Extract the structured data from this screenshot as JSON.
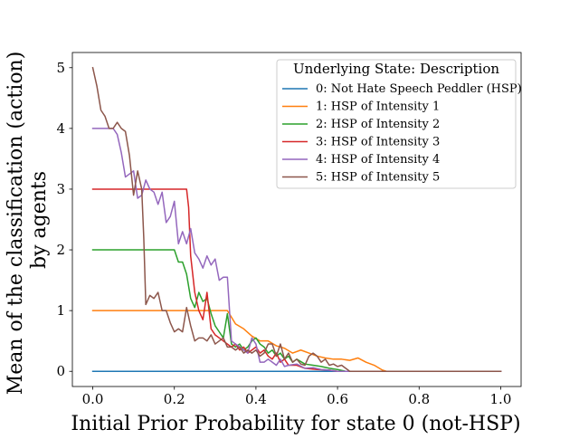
{
  "chart_data": {
    "type": "line",
    "xlabel": "Initial Prior Probability for state 0 (not-HSP)",
    "ylabel_lines": [
      "Mean of the classification (action)",
      "by agents"
    ],
    "xlim": [
      -0.05,
      1.05
    ],
    "ylim": [
      -0.25,
      5.25
    ],
    "xticks": [
      "0.0",
      "0.2",
      "0.4",
      "0.6",
      "0.8",
      "1.0"
    ],
    "yticks": [
      "0",
      "1",
      "2",
      "3",
      "4",
      "5"
    ],
    "grid": false,
    "legend": {
      "title": "Underlying State:  Description",
      "placement": "top-right",
      "entries": [
        "0:  Not Hate Speech Peddler (HSP)",
        "1:  HSP of Intensity 1",
        "2:  HSP of Intensity 2",
        "3:  HSP of Intensity 3",
        "4:  HSP of Intensity 4",
        "5:  HSP of Intensity 5"
      ]
    },
    "series": [
      {
        "name": "0:  Not Hate Speech Peddler (HSP)",
        "color": "#1f77b4",
        "points": [
          [
            0.0,
            0.0
          ],
          [
            1.0,
            0.0
          ]
        ]
      },
      {
        "name": "1:  HSP of Intensity 1",
        "color": "#ff7f0e",
        "points": [
          [
            0.0,
            1.0
          ],
          [
            0.33,
            1.0
          ],
          [
            0.35,
            0.78
          ],
          [
            0.37,
            0.7
          ],
          [
            0.39,
            0.58
          ],
          [
            0.41,
            0.5
          ],
          [
            0.43,
            0.5
          ],
          [
            0.45,
            0.42
          ],
          [
            0.47,
            0.38
          ],
          [
            0.49,
            0.3
          ],
          [
            0.51,
            0.35
          ],
          [
            0.53,
            0.3
          ],
          [
            0.55,
            0.25
          ],
          [
            0.57,
            0.22
          ],
          [
            0.59,
            0.2
          ],
          [
            0.61,
            0.2
          ],
          [
            0.63,
            0.18
          ],
          [
            0.65,
            0.22
          ],
          [
            0.67,
            0.15
          ],
          [
            0.69,
            0.1
          ],
          [
            0.71,
            0.02
          ],
          [
            0.72,
            0.0
          ],
          [
            1.0,
            0.0
          ]
        ]
      },
      {
        "name": "2:  HSP of Intensity 2",
        "color": "#2ca02c",
        "points": [
          [
            0.0,
            2.0
          ],
          [
            0.2,
            2.0
          ],
          [
            0.21,
            1.8
          ],
          [
            0.22,
            1.8
          ],
          [
            0.23,
            1.6
          ],
          [
            0.24,
            1.2
          ],
          [
            0.25,
            1.05
          ],
          [
            0.26,
            1.3
          ],
          [
            0.27,
            1.15
          ],
          [
            0.28,
            1.2
          ],
          [
            0.29,
            0.95
          ],
          [
            0.3,
            0.75
          ],
          [
            0.31,
            0.65
          ],
          [
            0.32,
            0.55
          ],
          [
            0.33,
            0.95
          ],
          [
            0.34,
            0.45
          ],
          [
            0.35,
            0.4
          ],
          [
            0.36,
            0.45
          ],
          [
            0.37,
            0.35
          ],
          [
            0.38,
            0.4
          ],
          [
            0.39,
            0.5
          ],
          [
            0.4,
            0.55
          ],
          [
            0.41,
            0.45
          ],
          [
            0.42,
            0.4
          ],
          [
            0.43,
            0.3
          ],
          [
            0.44,
            0.35
          ],
          [
            0.45,
            0.25
          ],
          [
            0.46,
            0.3
          ],
          [
            0.47,
            0.2
          ],
          [
            0.48,
            0.25
          ],
          [
            0.49,
            0.15
          ],
          [
            0.5,
            0.2
          ],
          [
            0.52,
            0.12
          ],
          [
            0.54,
            0.1
          ],
          [
            0.56,
            0.08
          ],
          [
            0.58,
            0.05
          ],
          [
            0.6,
            0.03
          ],
          [
            0.62,
            0.0
          ],
          [
            1.0,
            0.0
          ]
        ]
      },
      {
        "name": "3:  HSP of Intensity 3",
        "color": "#d62728",
        "points": [
          [
            0.0,
            3.0
          ],
          [
            0.23,
            3.0
          ],
          [
            0.235,
            2.7
          ],
          [
            0.24,
            1.9
          ],
          [
            0.25,
            1.3
          ],
          [
            0.26,
            1.0
          ],
          [
            0.27,
            0.85
          ],
          [
            0.28,
            1.3
          ],
          [
            0.29,
            0.7
          ],
          [
            0.3,
            0.6
          ],
          [
            0.31,
            0.55
          ],
          [
            0.32,
            0.5
          ],
          [
            0.33,
            0.45
          ],
          [
            0.34,
            0.4
          ],
          [
            0.35,
            0.45
          ],
          [
            0.36,
            0.35
          ],
          [
            0.37,
            0.4
          ],
          [
            0.38,
            0.3
          ],
          [
            0.39,
            0.35
          ],
          [
            0.4,
            0.4
          ],
          [
            0.41,
            0.3
          ],
          [
            0.42,
            0.35
          ],
          [
            0.43,
            0.25
          ],
          [
            0.44,
            0.2
          ],
          [
            0.45,
            0.3
          ],
          [
            0.46,
            0.15
          ],
          [
            0.47,
            0.2
          ],
          [
            0.48,
            0.1
          ],
          [
            0.5,
            0.1
          ],
          [
            0.52,
            0.05
          ],
          [
            0.55,
            0.03
          ],
          [
            0.58,
            0.02
          ],
          [
            0.6,
            0.0
          ],
          [
            1.0,
            0.0
          ]
        ]
      },
      {
        "name": "4:  HSP of Intensity 4",
        "color": "#9467bd",
        "points": [
          [
            0.0,
            4.0
          ],
          [
            0.05,
            4.0
          ],
          [
            0.06,
            3.9
          ],
          [
            0.07,
            3.6
          ],
          [
            0.08,
            3.2
          ],
          [
            0.09,
            3.25
          ],
          [
            0.1,
            3.3
          ],
          [
            0.11,
            2.85
          ],
          [
            0.12,
            2.9
          ],
          [
            0.13,
            3.15
          ],
          [
            0.14,
            3.0
          ],
          [
            0.15,
            2.95
          ],
          [
            0.16,
            2.75
          ],
          [
            0.17,
            2.95
          ],
          [
            0.18,
            2.45
          ],
          [
            0.19,
            2.55
          ],
          [
            0.2,
            2.8
          ],
          [
            0.21,
            2.1
          ],
          [
            0.22,
            2.3
          ],
          [
            0.23,
            2.1
          ],
          [
            0.24,
            2.35
          ],
          [
            0.25,
            1.95
          ],
          [
            0.26,
            1.85
          ],
          [
            0.27,
            1.7
          ],
          [
            0.28,
            1.9
          ],
          [
            0.29,
            1.75
          ],
          [
            0.3,
            1.85
          ],
          [
            0.31,
            1.5
          ],
          [
            0.32,
            1.55
          ],
          [
            0.33,
            1.55
          ],
          [
            0.34,
            0.5
          ],
          [
            0.35,
            0.45
          ],
          [
            0.36,
            0.4
          ],
          [
            0.37,
            0.35
          ],
          [
            0.38,
            0.3
          ],
          [
            0.39,
            0.55
          ],
          [
            0.4,
            0.45
          ],
          [
            0.41,
            0.15
          ],
          [
            0.42,
            0.15
          ],
          [
            0.43,
            0.2
          ],
          [
            0.44,
            0.15
          ],
          [
            0.45,
            0.1
          ],
          [
            0.46,
            0.2
          ],
          [
            0.47,
            0.08
          ],
          [
            0.48,
            0.1
          ],
          [
            0.5,
            0.12
          ],
          [
            0.52,
            0.05
          ],
          [
            0.54,
            0.06
          ],
          [
            0.56,
            0.03
          ],
          [
            0.58,
            0.02
          ],
          [
            0.6,
            0.0
          ],
          [
            1.0,
            0.0
          ]
        ]
      },
      {
        "name": "5:  HSP of Intensity 5",
        "color": "#8c564b",
        "points": [
          [
            0.0,
            5.0
          ],
          [
            0.01,
            4.7
          ],
          [
            0.02,
            4.3
          ],
          [
            0.03,
            4.2
          ],
          [
            0.04,
            4.0
          ],
          [
            0.05,
            4.0
          ],
          [
            0.06,
            4.1
          ],
          [
            0.07,
            4.0
          ],
          [
            0.08,
            3.95
          ],
          [
            0.09,
            3.55
          ],
          [
            0.1,
            2.9
          ],
          [
            0.11,
            3.3
          ],
          [
            0.12,
            3.0
          ],
          [
            0.125,
            2.2
          ],
          [
            0.13,
            1.1
          ],
          [
            0.14,
            1.25
          ],
          [
            0.15,
            1.2
          ],
          [
            0.16,
            1.3
          ],
          [
            0.17,
            1.0
          ],
          [
            0.18,
            1.0
          ],
          [
            0.19,
            0.8
          ],
          [
            0.2,
            0.65
          ],
          [
            0.21,
            0.7
          ],
          [
            0.22,
            0.65
          ],
          [
            0.23,
            1.05
          ],
          [
            0.24,
            0.75
          ],
          [
            0.25,
            0.5
          ],
          [
            0.26,
            0.55
          ],
          [
            0.27,
            0.55
          ],
          [
            0.28,
            0.5
          ],
          [
            0.29,
            0.6
          ],
          [
            0.3,
            0.45
          ],
          [
            0.31,
            0.5
          ],
          [
            0.32,
            0.55
          ],
          [
            0.33,
            0.4
          ],
          [
            0.34,
            0.4
          ],
          [
            0.35,
            0.35
          ],
          [
            0.36,
            0.4
          ],
          [
            0.37,
            0.3
          ],
          [
            0.38,
            0.35
          ],
          [
            0.39,
            0.3
          ],
          [
            0.4,
            0.35
          ],
          [
            0.41,
            0.25
          ],
          [
            0.42,
            0.3
          ],
          [
            0.43,
            0.45
          ],
          [
            0.44,
            0.45
          ],
          [
            0.45,
            0.25
          ],
          [
            0.46,
            0.45
          ],
          [
            0.47,
            0.2
          ],
          [
            0.48,
            0.3
          ],
          [
            0.49,
            0.15
          ],
          [
            0.5,
            0.2
          ],
          [
            0.51,
            0.12
          ],
          [
            0.52,
            0.1
          ],
          [
            0.53,
            0.25
          ],
          [
            0.54,
            0.3
          ],
          [
            0.55,
            0.25
          ],
          [
            0.56,
            0.15
          ],
          [
            0.57,
            0.2
          ],
          [
            0.58,
            0.1
          ],
          [
            0.59,
            0.12
          ],
          [
            0.6,
            0.08
          ],
          [
            0.61,
            0.1
          ],
          [
            0.62,
            0.05
          ],
          [
            0.63,
            0.0
          ],
          [
            1.0,
            0.0
          ]
        ]
      }
    ]
  }
}
